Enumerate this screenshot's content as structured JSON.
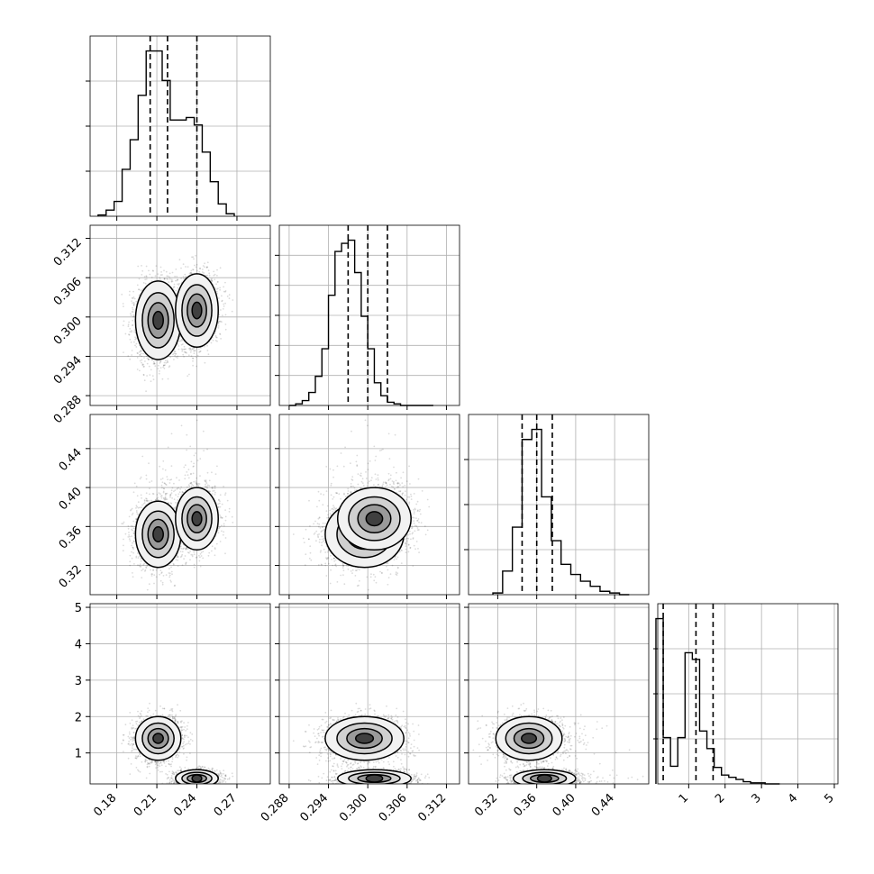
{
  "chart_data": {
    "type": "corner",
    "grid": true,
    "colors": {
      "line": "#000000",
      "grid": "#b0b0b0",
      "points": "#000000",
      "background": "#ffffff"
    },
    "parameters": [
      {
        "range": [
          0.16,
          0.295
        ],
        "ticks": [
          0.18,
          0.21,
          0.24,
          0.27
        ],
        "tick_labels": [
          "0.18",
          "0.21",
          "0.24",
          "0.27"
        ]
      },
      {
        "range": [
          0.2865,
          0.314
        ],
        "ticks": [
          0.288,
          0.294,
          0.3,
          0.306,
          0.312
        ],
        "tick_labels": [
          "0.288",
          "0.294",
          "0.300",
          "0.306",
          "0.312"
        ]
      },
      {
        "range": [
          0.29,
          0.475
        ],
        "ticks": [
          0.32,
          0.36,
          0.4,
          0.44
        ],
        "tick_labels": [
          "0.32",
          "0.36",
          "0.40",
          "0.44"
        ]
      },
      {
        "range": [
          0.15,
          5.1
        ],
        "ticks": [
          1,
          2,
          3,
          4,
          5
        ],
        "tick_labels": [
          "1",
          "2",
          "3",
          "4",
          "5"
        ]
      }
    ],
    "histograms": [
      {
        "bin_edges": [
          0.166,
          0.172,
          0.178,
          0.184,
          0.19,
          0.196,
          0.202,
          0.208,
          0.214,
          0.22,
          0.226,
          0.232,
          0.238,
          0.244,
          0.25,
          0.256,
          0.262,
          0.268
        ],
        "counts": [
          1,
          5,
          12,
          38,
          62,
          98,
          134,
          134,
          110,
          78,
          78,
          80,
          74,
          52,
          28,
          10,
          2
        ],
        "quantiles": [
          0.205,
          0.218,
          0.24
        ]
      },
      {
        "bin_edges": [
          0.288,
          0.289,
          0.29,
          0.291,
          0.292,
          0.293,
          0.294,
          0.295,
          0.296,
          0.297,
          0.298,
          0.299,
          0.3,
          0.301,
          0.302,
          0.303,
          0.304,
          0.305,
          0.306,
          0.307,
          0.308,
          0.309,
          0.31
        ],
        "counts": [
          0,
          1,
          3,
          8,
          18,
          35,
          68,
          95,
          100,
          102,
          82,
          55,
          35,
          14,
          6,
          2,
          1,
          0,
          0,
          0,
          0,
          0
        ],
        "quantiles": [
          0.297,
          0.3,
          0.303
        ]
      },
      {
        "bin_edges": [
          0.315,
          0.325,
          0.335,
          0.345,
          0.355,
          0.365,
          0.375,
          0.385,
          0.395,
          0.405,
          0.415,
          0.425,
          0.435,
          0.445,
          0.455
        ],
        "counts": [
          1,
          14,
          40,
          92,
          98,
          58,
          32,
          18,
          12,
          8,
          5,
          2,
          1,
          0
        ],
        "quantiles": [
          0.345,
          0.36,
          0.376
        ]
      },
      {
        "bin_edges": [
          0.1,
          0.3,
          0.5,
          0.7,
          0.9,
          1.1,
          1.3,
          1.5,
          1.7,
          1.9,
          2.1,
          2.3,
          2.5,
          2.7,
          2.9,
          3.1,
          3.3,
          3.5
        ],
        "counts": [
          150,
          42,
          16,
          42,
          119,
          113,
          48,
          32,
          15,
          8,
          6,
          4,
          2,
          1,
          1,
          0,
          0
        ],
        "quantiles": [
          0.3,
          1.2,
          1.67
        ]
      }
    ]
  }
}
